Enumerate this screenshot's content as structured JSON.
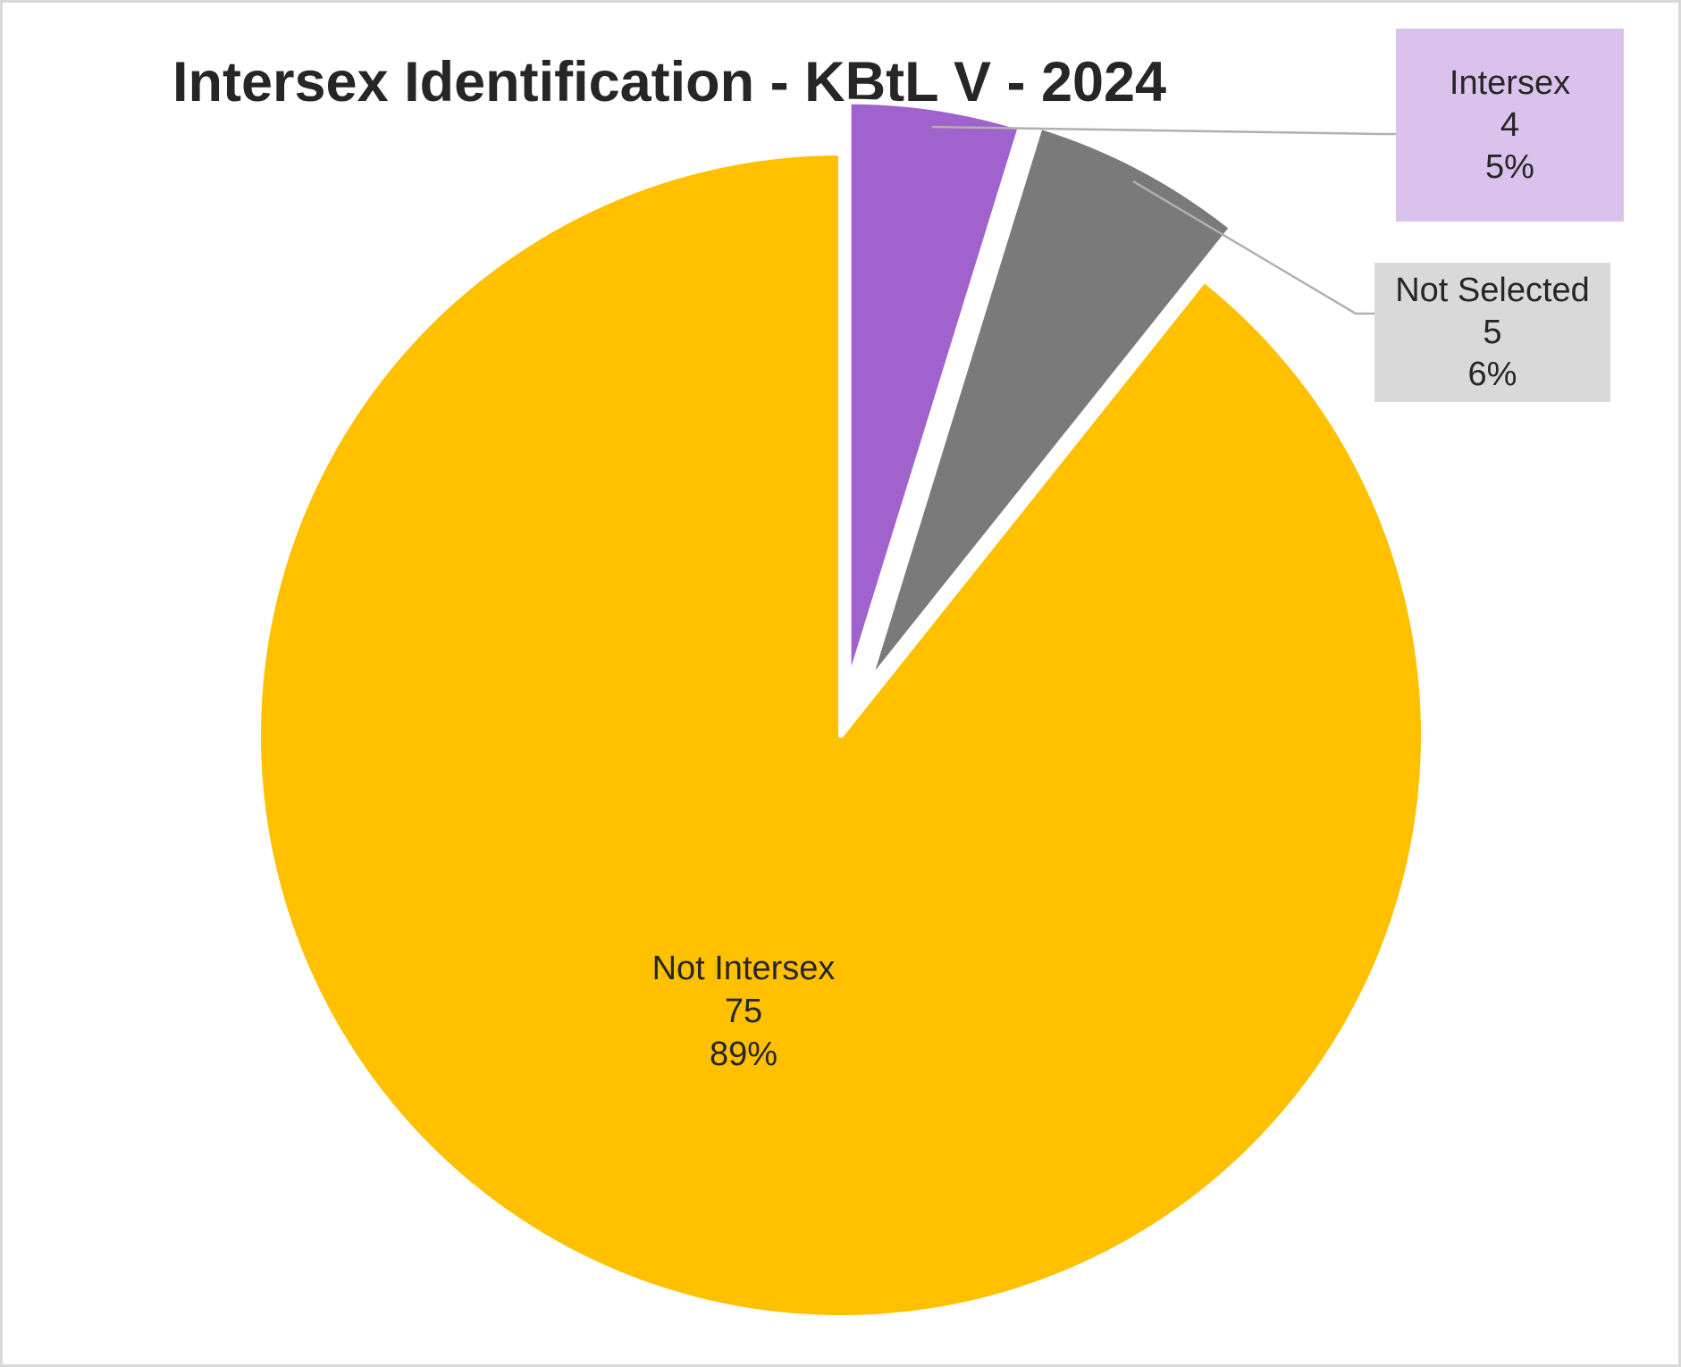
{
  "chart_data": {
    "type": "pie",
    "title": "Intersex Identification - KBtL V - 2024",
    "categories": [
      "Intersex",
      "Not Selected",
      "Not Intersex"
    ],
    "values": [
      4,
      5,
      75
    ],
    "percentages": [
      "5%",
      "6%",
      "89%"
    ],
    "colors": [
      "#a062cc",
      "#7a7a7a",
      "#ffc000"
    ],
    "start_angle_deg": 0,
    "direction": "clockwise",
    "exploded": [
      "Intersex",
      "Not Selected"
    ],
    "legend": "none",
    "data_labels": [
      {
        "category": "Intersex",
        "value": "4",
        "percent": "5%",
        "position": "callout",
        "background": "#dbc2ec"
      },
      {
        "category": "Not Selected",
        "value": "5",
        "percent": "6%",
        "position": "callout",
        "background": "#d9d9d9"
      },
      {
        "category": "Not Intersex",
        "value": "75",
        "percent": "89%",
        "position": "inside"
      }
    ]
  },
  "labels": {
    "intersex": {
      "name": "Intersex",
      "value": "4",
      "percent": "5%"
    },
    "not_selected": {
      "name": "Not Selected",
      "value": "5",
      "percent": "6%"
    },
    "not_intersex": {
      "name": "Not Intersex",
      "value": "75",
      "percent": "89%"
    }
  }
}
